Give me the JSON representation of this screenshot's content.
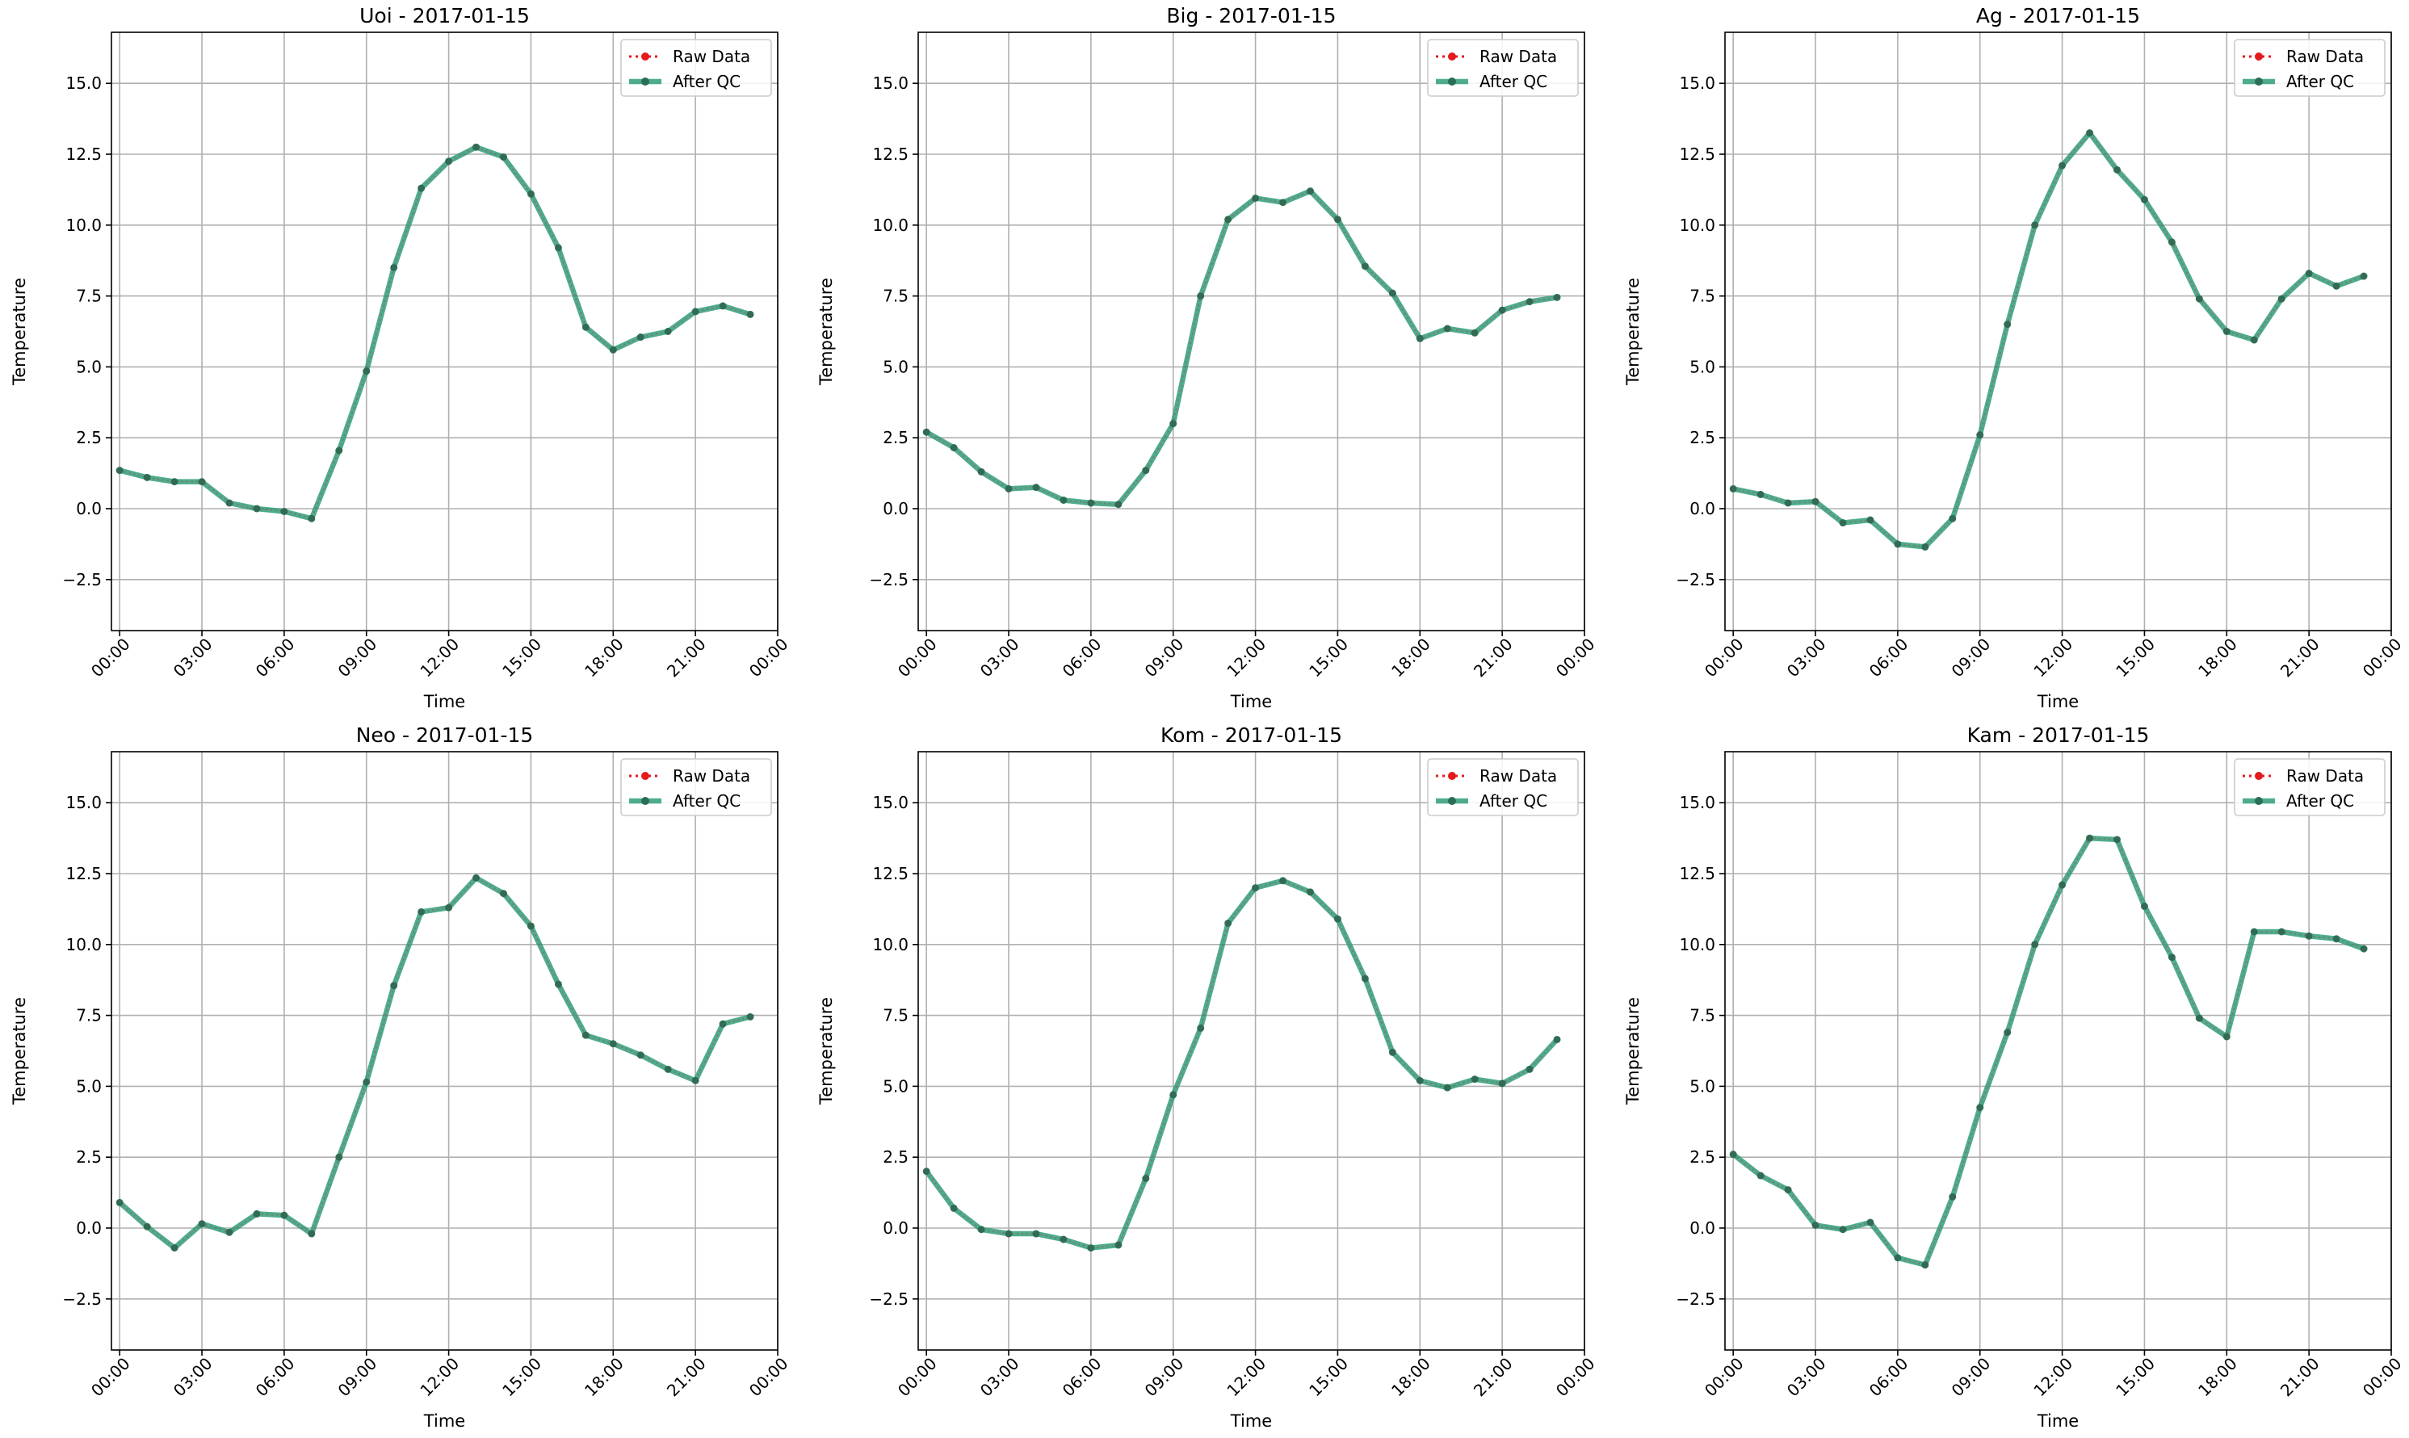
{
  "figure": {
    "colors": {
      "raw": "#e41a1c",
      "qc": "#2f9e79",
      "qc_marker": "#2a6e55",
      "grid": "#b0b0b0",
      "axes": "#000000",
      "background": "#ffffff"
    },
    "legend": {
      "raw_label": "Raw Data",
      "qc_label": "After QC",
      "placement": "top-right"
    }
  },
  "chart_data": [
    {
      "type": "line",
      "title": "Uoi - 2017-01-15",
      "xlabel": "Time",
      "ylabel": "Temperature",
      "x_unit": "hours",
      "x": [
        0,
        1,
        2,
        3,
        4,
        5,
        6,
        7,
        8,
        9,
        10,
        11,
        12,
        13,
        14,
        15,
        16,
        17,
        18,
        19,
        20,
        21,
        22,
        23
      ],
      "xlim": [
        -0.3,
        24
      ],
      "ylim": [
        -4.3,
        16.8
      ],
      "xticks": [
        0,
        3,
        6,
        9,
        12,
        15,
        18,
        21,
        24
      ],
      "xtick_labels": [
        "00:00",
        "03:00",
        "06:00",
        "09:00",
        "12:00",
        "15:00",
        "18:00",
        "21:00",
        "00:00"
      ],
      "yticks": [
        -2.5,
        0,
        2.5,
        5,
        7.5,
        10,
        12.5,
        15
      ],
      "ytick_labels": [
        "−2.5",
        "0.0",
        "2.5",
        "5.0",
        "7.5",
        "10.0",
        "12.5",
        "15.0"
      ],
      "grid": true,
      "legend_position": "top-right",
      "series": [
        {
          "name": "Raw Data",
          "values": [
            1.35,
            1.1,
            0.95,
            0.95,
            0.2,
            0.0,
            -0.1,
            -0.35,
            2.05,
            4.85,
            8.5,
            11.3,
            12.25,
            12.75,
            12.4,
            11.1,
            9.2,
            6.4,
            5.6,
            6.05,
            6.25,
            6.95,
            7.15,
            6.85
          ]
        },
        {
          "name": "After QC",
          "values": [
            1.35,
            1.1,
            0.95,
            0.95,
            0.2,
            0.0,
            -0.1,
            -0.35,
            2.05,
            4.85,
            8.5,
            11.3,
            12.25,
            12.75,
            12.4,
            11.1,
            9.2,
            6.4,
            5.6,
            6.05,
            6.25,
            6.95,
            7.15,
            6.85
          ]
        }
      ]
    },
    {
      "type": "line",
      "title": "Big - 2017-01-15",
      "xlabel": "Time",
      "ylabel": "Temperature",
      "x_unit": "hours",
      "x": [
        0,
        1,
        2,
        3,
        4,
        5,
        6,
        7,
        8,
        9,
        10,
        11,
        12,
        13,
        14,
        15,
        16,
        17,
        18,
        19,
        20,
        21,
        22,
        23
      ],
      "xlim": [
        -0.3,
        24
      ],
      "ylim": [
        -4.3,
        16.8
      ],
      "xticks": [
        0,
        3,
        6,
        9,
        12,
        15,
        18,
        21,
        24
      ],
      "xtick_labels": [
        "00:00",
        "03:00",
        "06:00",
        "09:00",
        "12:00",
        "15:00",
        "18:00",
        "21:00",
        "00:00"
      ],
      "yticks": [
        -2.5,
        0,
        2.5,
        5,
        7.5,
        10,
        12.5,
        15
      ],
      "ytick_labels": [
        "−2.5",
        "0.0",
        "2.5",
        "5.0",
        "7.5",
        "10.0",
        "12.5",
        "15.0"
      ],
      "grid": true,
      "legend_position": "top-right",
      "series": [
        {
          "name": "Raw Data",
          "values": [
            2.7,
            2.15,
            1.3,
            0.7,
            0.75,
            0.3,
            0.2,
            0.15,
            1.35,
            3.0,
            7.5,
            10.2,
            10.95,
            10.8,
            11.2,
            10.2,
            8.55,
            7.6,
            6.0,
            6.35,
            6.2,
            7.0,
            7.3,
            7.45
          ]
        },
        {
          "name": "After QC",
          "values": [
            2.7,
            2.15,
            1.3,
            0.7,
            0.75,
            0.3,
            0.2,
            0.15,
            1.35,
            3.0,
            7.5,
            10.2,
            10.95,
            10.8,
            11.2,
            10.2,
            8.55,
            7.6,
            6.0,
            6.35,
            6.2,
            7.0,
            7.3,
            7.45
          ]
        }
      ]
    },
    {
      "type": "line",
      "title": "Ag - 2017-01-15",
      "xlabel": "Time",
      "ylabel": "Temperature",
      "x_unit": "hours",
      "x": [
        0,
        1,
        2,
        3,
        4,
        5,
        6,
        7,
        8,
        9,
        10,
        11,
        12,
        13,
        14,
        15,
        16,
        17,
        18,
        19,
        20,
        21,
        22,
        23
      ],
      "xlim": [
        -0.3,
        24
      ],
      "ylim": [
        -4.3,
        16.8
      ],
      "xticks": [
        0,
        3,
        6,
        9,
        12,
        15,
        18,
        21,
        24
      ],
      "xtick_labels": [
        "00:00",
        "03:00",
        "06:00",
        "09:00",
        "12:00",
        "15:00",
        "18:00",
        "21:00",
        "00:00"
      ],
      "yticks": [
        -2.5,
        0,
        2.5,
        5,
        7.5,
        10,
        12.5,
        15
      ],
      "ytick_labels": [
        "−2.5",
        "0.0",
        "2.5",
        "5.0",
        "7.5",
        "10.0",
        "12.5",
        "15.0"
      ],
      "grid": true,
      "legend_position": "top-right",
      "series": [
        {
          "name": "Raw Data",
          "values": [
            0.7,
            0.5,
            0.2,
            0.25,
            -0.5,
            -0.4,
            -1.25,
            -1.35,
            -0.35,
            2.6,
            6.5,
            10.0,
            12.1,
            13.25,
            11.95,
            10.9,
            9.4,
            7.4,
            6.25,
            5.95,
            7.4,
            8.3,
            7.85,
            8.2
          ]
        },
        {
          "name": "After QC",
          "values": [
            0.7,
            0.5,
            0.2,
            0.25,
            -0.5,
            -0.4,
            -1.25,
            -1.35,
            -0.35,
            2.6,
            6.5,
            10.0,
            12.1,
            13.25,
            11.95,
            10.9,
            9.4,
            7.4,
            6.25,
            5.95,
            7.4,
            8.3,
            7.85,
            8.2
          ]
        }
      ]
    },
    {
      "type": "line",
      "title": "Neo - 2017-01-15",
      "xlabel": "Time",
      "ylabel": "Temperature",
      "x_unit": "hours",
      "x": [
        0,
        1,
        2,
        3,
        4,
        5,
        6,
        7,
        8,
        9,
        10,
        11,
        12,
        13,
        14,
        15,
        16,
        17,
        18,
        19,
        20,
        21,
        22,
        23
      ],
      "xlim": [
        -0.3,
        24
      ],
      "ylim": [
        -4.3,
        16.8
      ],
      "xticks": [
        0,
        3,
        6,
        9,
        12,
        15,
        18,
        21,
        24
      ],
      "xtick_labels": [
        "00:00",
        "03:00",
        "06:00",
        "09:00",
        "12:00",
        "15:00",
        "18:00",
        "21:00",
        "00:00"
      ],
      "yticks": [
        -2.5,
        0,
        2.5,
        5,
        7.5,
        10,
        12.5,
        15
      ],
      "ytick_labels": [
        "−2.5",
        "0.0",
        "2.5",
        "5.0",
        "7.5",
        "10.0",
        "12.5",
        "15.0"
      ],
      "grid": true,
      "legend_position": "top-right",
      "series": [
        {
          "name": "Raw Data",
          "values": [
            0.9,
            0.05,
            -0.7,
            0.15,
            -0.15,
            0.5,
            0.45,
            -0.2,
            2.5,
            5.15,
            8.55,
            11.15,
            11.3,
            12.35,
            11.8,
            10.65,
            8.6,
            6.8,
            6.5,
            6.1,
            5.6,
            5.2,
            7.2,
            7.45
          ]
        },
        {
          "name": "After QC",
          "values": [
            0.9,
            0.05,
            -0.7,
            0.15,
            -0.15,
            0.5,
            0.45,
            -0.2,
            2.5,
            5.15,
            8.55,
            11.15,
            11.3,
            12.35,
            11.8,
            10.65,
            8.6,
            6.8,
            6.5,
            6.1,
            5.6,
            5.2,
            7.2,
            7.45
          ]
        }
      ]
    },
    {
      "type": "line",
      "title": "Kom - 2017-01-15",
      "xlabel": "Time",
      "ylabel": "Temperature",
      "x_unit": "hours",
      "x": [
        0,
        1,
        2,
        3,
        4,
        5,
        6,
        7,
        8,
        9,
        10,
        11,
        12,
        13,
        14,
        15,
        16,
        17,
        18,
        19,
        20,
        21,
        22,
        23
      ],
      "xlim": [
        -0.3,
        24
      ],
      "ylim": [
        -4.3,
        16.8
      ],
      "xticks": [
        0,
        3,
        6,
        9,
        12,
        15,
        18,
        21,
        24
      ],
      "xtick_labels": [
        "00:00",
        "03:00",
        "06:00",
        "09:00",
        "12:00",
        "15:00",
        "18:00",
        "21:00",
        "00:00"
      ],
      "yticks": [
        -2.5,
        0,
        2.5,
        5,
        7.5,
        10,
        12.5,
        15
      ],
      "ytick_labels": [
        "−2.5",
        "0.0",
        "2.5",
        "5.0",
        "7.5",
        "10.0",
        "12.5",
        "15.0"
      ],
      "grid": true,
      "legend_position": "top-right",
      "series": [
        {
          "name": "Raw Data",
          "values": [
            2.0,
            0.7,
            -0.05,
            -0.2,
            -0.2,
            -0.4,
            -0.7,
            -0.6,
            1.75,
            4.7,
            7.05,
            10.75,
            12.0,
            12.25,
            11.85,
            10.9,
            8.8,
            6.2,
            5.2,
            4.95,
            5.25,
            5.1,
            5.6,
            6.65
          ]
        },
        {
          "name": "After QC",
          "values": [
            2.0,
            0.7,
            -0.05,
            -0.2,
            -0.2,
            -0.4,
            -0.7,
            -0.6,
            1.75,
            4.7,
            7.05,
            10.75,
            12.0,
            12.25,
            11.85,
            10.9,
            8.8,
            6.2,
            5.2,
            4.95,
            5.25,
            5.1,
            5.6,
            6.65
          ]
        }
      ]
    },
    {
      "type": "line",
      "title": "Kam - 2017-01-15",
      "xlabel": "Time",
      "ylabel": "Temperature",
      "x_unit": "hours",
      "x": [
        0,
        1,
        2,
        3,
        4,
        5,
        6,
        7,
        8,
        9,
        10,
        11,
        12,
        13,
        14,
        15,
        16,
        17,
        18,
        19,
        20,
        21,
        22,
        23
      ],
      "xlim": [
        -0.3,
        24
      ],
      "ylim": [
        -4.3,
        16.8
      ],
      "xticks": [
        0,
        3,
        6,
        9,
        12,
        15,
        18,
        21,
        24
      ],
      "xtick_labels": [
        "00:00",
        "03:00",
        "06:00",
        "09:00",
        "12:00",
        "15:00",
        "18:00",
        "21:00",
        "00:00"
      ],
      "yticks": [
        -2.5,
        0,
        2.5,
        5,
        7.5,
        10,
        12.5,
        15
      ],
      "ytick_labels": [
        "−2.5",
        "0.0",
        "2.5",
        "5.0",
        "7.5",
        "10.0",
        "12.5",
        "15.0"
      ],
      "grid": true,
      "legend_position": "top-right",
      "series": [
        {
          "name": "Raw Data",
          "values": [
            2.6,
            1.85,
            1.35,
            0.1,
            -0.05,
            0.2,
            -1.05,
            -1.3,
            1.1,
            4.25,
            6.9,
            10.0,
            12.1,
            13.75,
            13.7,
            11.35,
            9.55,
            7.4,
            6.75,
            10.45,
            10.45,
            10.3,
            10.2,
            9.85
          ]
        },
        {
          "name": "After QC",
          "values": [
            2.6,
            1.85,
            1.35,
            0.1,
            -0.05,
            0.2,
            -1.05,
            -1.3,
            1.1,
            4.25,
            6.9,
            10.0,
            12.1,
            13.75,
            13.7,
            11.35,
            9.55,
            7.4,
            6.75,
            10.45,
            10.45,
            10.3,
            10.2,
            9.85
          ]
        }
      ]
    }
  ]
}
